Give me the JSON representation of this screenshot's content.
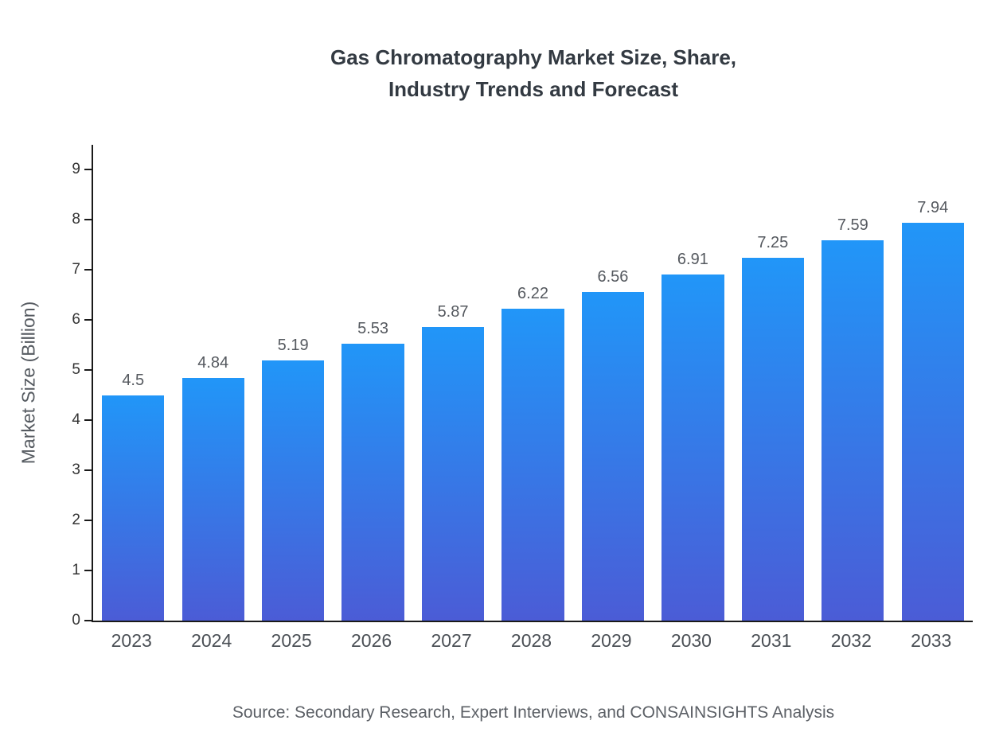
{
  "chart_data": {
    "type": "bar",
    "title": "Gas Chromatography Market Size, Share,\nIndustry Trends and Forecast",
    "categories": [
      "2023",
      "2024",
      "2025",
      "2026",
      "2027",
      "2028",
      "2029",
      "2030",
      "2031",
      "2032",
      "2033"
    ],
    "values": [
      4.5,
      4.84,
      5.19,
      5.53,
      5.87,
      6.22,
      6.56,
      6.91,
      7.25,
      7.59,
      7.94
    ],
    "xlabel": "",
    "ylabel": "Market Size (Billion)",
    "ylim": [
      0,
      9.5
    ],
    "yticks": [
      0,
      1,
      2,
      3,
      4,
      5,
      6,
      7,
      8,
      9
    ],
    "grid": false,
    "legend": "none",
    "source": "Source: Secondary Research, Expert Interviews, and CONSAINSIGHTS Analysis",
    "colors": {
      "bar_gradient_top": "#2196f8",
      "bar_gradient_bottom": "#4b5cd6",
      "axis": "#1a1a1a",
      "title": "#333a42",
      "labels": "#55595f"
    }
  }
}
